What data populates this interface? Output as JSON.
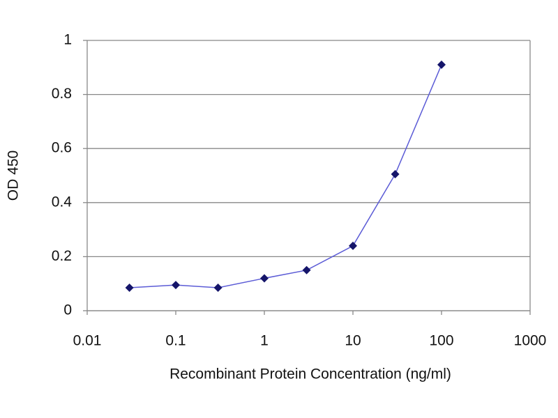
{
  "chart_data": {
    "type": "line",
    "x_label": "Recombinant Protein Concentration (ng/ml)",
    "y_label": "OD 450",
    "x": [
      0.03,
      0.1,
      0.3,
      1,
      3,
      10,
      30,
      100
    ],
    "values": [
      0.085,
      0.095,
      0.085,
      0.12,
      0.15,
      0.24,
      0.505,
      0.91
    ],
    "line_color": "#5b5bd6",
    "marker_color": "#15156a",
    "xscale": "log",
    "xlim": [
      0.01,
      1000
    ],
    "xticks": [
      0.01,
      0.1,
      1,
      10,
      100,
      1000
    ],
    "ylim": [
      0,
      1
    ],
    "yticks": [
      0,
      0.2,
      0.4,
      0.6,
      0.8,
      1
    ],
    "grid": true
  }
}
